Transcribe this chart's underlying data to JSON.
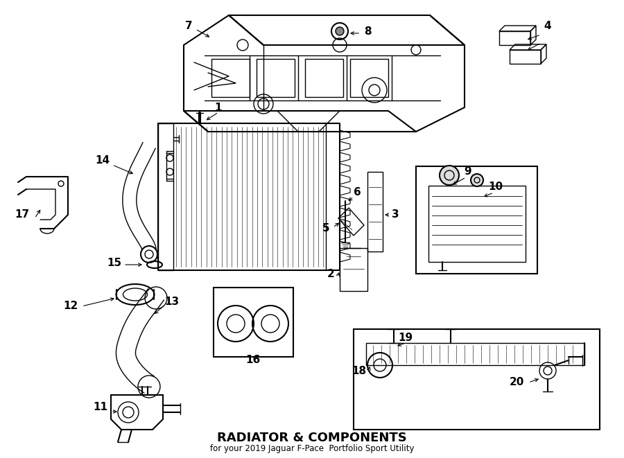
{
  "title": "RADIATOR & COMPONENTS",
  "subtitle": "for your 2019 Jaguar F-Pace  Portfolio Sport Utility",
  "bg_color": "#ffffff",
  "line_color": "#000000",
  "label_color": "#000000",
  "fig_width": 9.0,
  "fig_height": 6.61,
  "dpi": 100
}
